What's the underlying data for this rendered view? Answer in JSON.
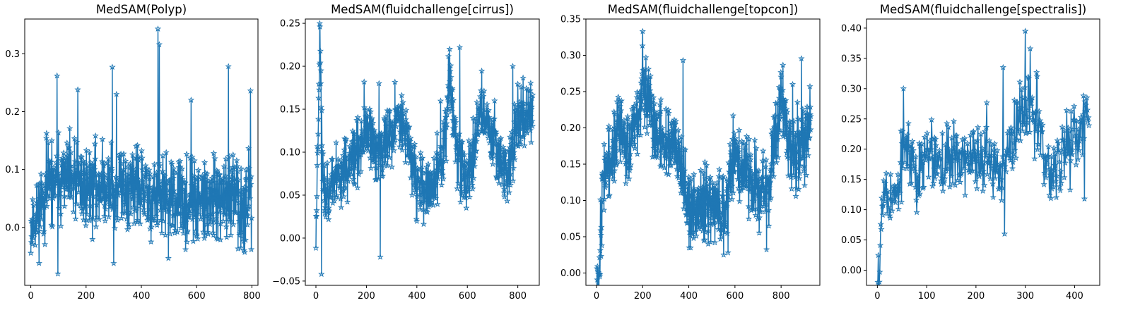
{
  "figure": {
    "colors": {
      "series": "#1f77b4",
      "axes": "#000000",
      "background": "#ffffff"
    },
    "marker": "star-icon"
  },
  "chart_data": [
    {
      "type": "line",
      "title": "MedSAM(Polyp)",
      "xlabel": "",
      "ylabel": "",
      "n_points": 800,
      "xlim": [
        -22,
        822
      ],
      "ylim": [
        -0.1,
        0.36
      ],
      "xticks": [
        0,
        200,
        400,
        600,
        800
      ],
      "xtick_labels": [
        "0",
        "200",
        "400",
        "600",
        "800"
      ],
      "yticks": [
        0.0,
        0.1,
        0.2,
        0.3
      ],
      "ytick_labels": [
        "0.0",
        "0.1",
        "0.2",
        "0.3"
      ],
      "profile_x": [
        0,
        20,
        60,
        120,
        200,
        300,
        400,
        460,
        560,
        640,
        720,
        800
      ],
      "profile_y": [
        0.0,
        0.02,
        0.07,
        0.08,
        0.07,
        0.07,
        0.06,
        0.05,
        0.04,
        0.04,
        0.05,
        0.05
      ],
      "noise": 0.035,
      "seed": 11,
      "spikes": [
        {
          "x": 95,
          "y": 0.262
        },
        {
          "x": 98,
          "y": -0.08
        },
        {
          "x": 170,
          "y": 0.238
        },
        {
          "x": 295,
          "y": 0.277
        },
        {
          "x": 300,
          "y": -0.062
        },
        {
          "x": 310,
          "y": 0.23
        },
        {
          "x": 460,
          "y": 0.343
        },
        {
          "x": 465,
          "y": 0.316
        },
        {
          "x": 580,
          "y": 0.22
        },
        {
          "x": 715,
          "y": 0.278
        },
        {
          "x": 760,
          "y": -0.035
        },
        {
          "x": 795,
          "y": 0.236
        },
        {
          "x": 798,
          "y": -0.038
        }
      ]
    },
    {
      "type": "line",
      "title": "MedSAM(fluidchallenge[cirrus])",
      "xlabel": "",
      "ylabel": "",
      "n_points": 860,
      "xlim": [
        -42,
        885
      ],
      "ylim": [
        -0.055,
        0.255
      ],
      "xticks": [
        0,
        200,
        400,
        600,
        800
      ],
      "xtick_labels": [
        "0",
        "200",
        "400",
        "600",
        "800"
      ],
      "yticks": [
        -0.05,
        0.0,
        0.05,
        0.1,
        0.15,
        0.2,
        0.25
      ],
      "ytick_labels": [
        "−0.05",
        "0.00",
        "0.05",
        "0.10",
        "0.15",
        "0.20",
        "0.25"
      ],
      "profile_x": [
        0,
        15,
        30,
        80,
        150,
        200,
        250,
        300,
        340,
        400,
        450,
        500,
        530,
        560,
        600,
        650,
        700,
        760,
        800,
        860
      ],
      "profile_y": [
        0.0,
        0.23,
        0.05,
        0.07,
        0.09,
        0.12,
        0.1,
        0.12,
        0.15,
        0.06,
        0.05,
        0.09,
        0.18,
        0.1,
        0.06,
        0.15,
        0.12,
        0.07,
        0.14,
        0.14
      ],
      "noise": 0.018,
      "seed": 23,
      "spikes": [
        {
          "x": 16,
          "y": 0.246
        },
        {
          "x": 22,
          "y": -0.042
        },
        {
          "x": 250,
          "y": 0.18
        },
        {
          "x": 255,
          "y": -0.022
        },
        {
          "x": 530,
          "y": 0.22
        },
        {
          "x": 570,
          "y": 0.222
        },
        {
          "x": 780,
          "y": 0.2
        }
      ]
    },
    {
      "type": "line",
      "title": "MedSAM(fluidchallenge[topcon])",
      "xlabel": "",
      "ylabel": "",
      "n_points": 930,
      "xlim": [
        -46,
        968
      ],
      "ylim": [
        -0.017,
        0.35
      ],
      "xticks": [
        0,
        200,
        400,
        600,
        800
      ],
      "xtick_labels": [
        "0",
        "200",
        "400",
        "600",
        "800"
      ],
      "yticks": [
        0.0,
        0.05,
        0.1,
        0.15,
        0.2,
        0.25,
        0.3,
        0.35
      ],
      "ytick_labels": [
        "0.00",
        "0.05",
        "0.10",
        "0.15",
        "0.20",
        "0.25",
        "0.30",
        "0.35"
      ],
      "profile_x": [
        0,
        10,
        30,
        60,
        100,
        150,
        200,
        250,
        300,
        350,
        400,
        450,
        500,
        550,
        600,
        650,
        700,
        750,
        800,
        850,
        930
      ],
      "profile_y": [
        0.0,
        0.0,
        0.14,
        0.15,
        0.2,
        0.17,
        0.26,
        0.2,
        0.18,
        0.19,
        0.08,
        0.09,
        0.1,
        0.08,
        0.17,
        0.13,
        0.12,
        0.12,
        0.24,
        0.15,
        0.2
      ],
      "noise": 0.025,
      "seed": 37,
      "spikes": [
        {
          "x": 200,
          "y": 0.333
        },
        {
          "x": 375,
          "y": 0.293
        },
        {
          "x": 570,
          "y": 0.028
        },
        {
          "x": 850,
          "y": 0.26
        },
        {
          "x": 925,
          "y": 0.257
        }
      ]
    },
    {
      "type": "line",
      "title": "MedSAM(fluidchallenge[spectralis])",
      "xlabel": "",
      "ylabel": "",
      "n_points": 430,
      "xlim": [
        -22,
        451
      ],
      "ylim": [
        -0.025,
        0.415
      ],
      "xticks": [
        0,
        100,
        200,
        300,
        400
      ],
      "xtick_labels": [
        "0",
        "100",
        "200",
        "300",
        "400"
      ],
      "yticks": [
        0.0,
        0.05,
        0.1,
        0.15,
        0.2,
        0.25,
        0.3,
        0.35,
        0.4
      ],
      "ytick_labels": [
        "0.00",
        "0.05",
        "0.10",
        "0.15",
        "0.20",
        "0.25",
        "0.30",
        "0.35",
        "0.40"
      ],
      "profile_x": [
        0,
        5,
        10,
        20,
        40,
        60,
        80,
        100,
        150,
        200,
        250,
        280,
        300,
        320,
        350,
        380,
        400,
        430
      ],
      "profile_y": [
        0.0,
        0.0,
        0.16,
        0.12,
        0.12,
        0.22,
        0.15,
        0.18,
        0.19,
        0.18,
        0.17,
        0.22,
        0.28,
        0.25,
        0.15,
        0.2,
        0.22,
        0.24
      ],
      "noise": 0.028,
      "seed": 53,
      "spikes": [
        {
          "x": 53,
          "y": 0.3
        },
        {
          "x": 255,
          "y": 0.335
        },
        {
          "x": 258,
          "y": 0.06
        },
        {
          "x": 300,
          "y": 0.395
        },
        {
          "x": 324,
          "y": 0.32
        },
        {
          "x": 420,
          "y": 0.118
        },
        {
          "x": 425,
          "y": 0.285
        }
      ]
    }
  ]
}
